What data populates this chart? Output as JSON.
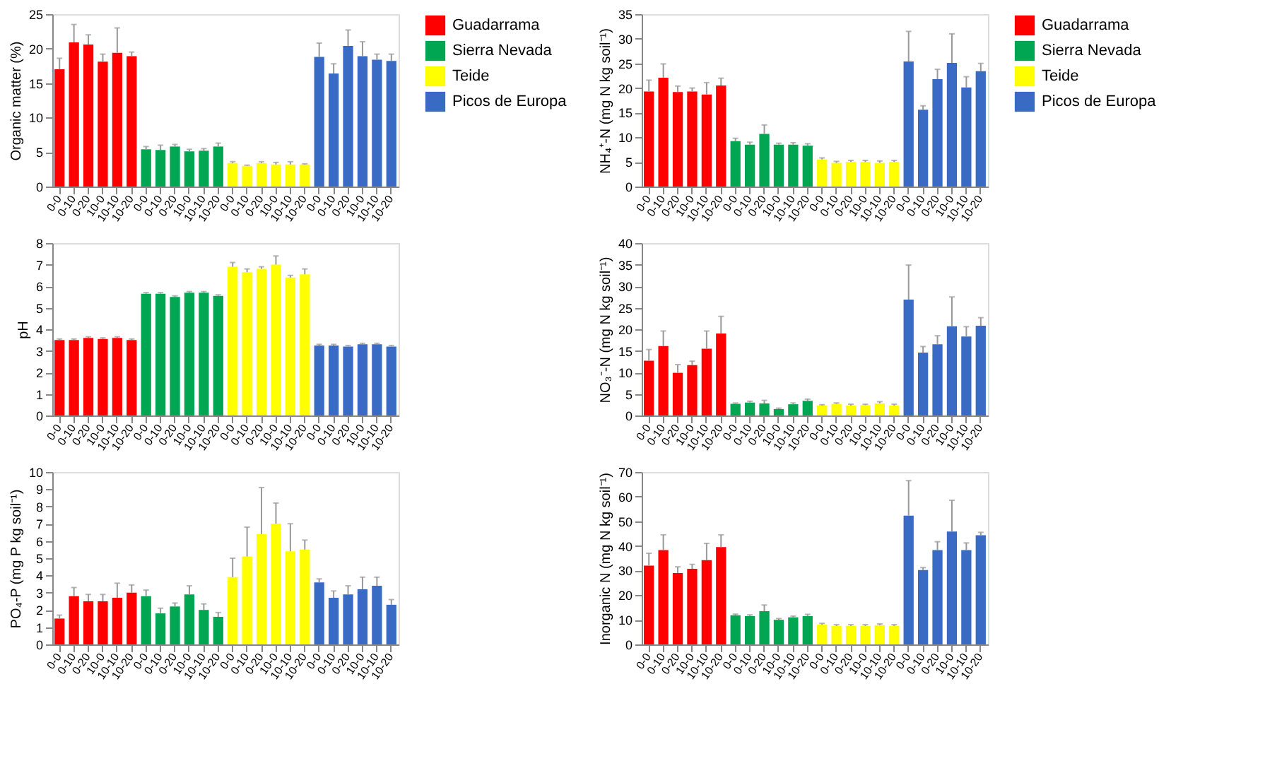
{
  "chart_data": [
    {
      "type": "bar",
      "ylabel": "Organic matter (%)",
      "legend": "right",
      "ylim": [
        0,
        25
      ],
      "yticks": [
        0,
        5,
        10,
        15,
        20,
        25
      ],
      "categories": [
        "0-0",
        "0-10",
        "0-20",
        "10-0",
        "10-10",
        "10-20",
        "0-0",
        "0-10",
        "0-20",
        "10-0",
        "10-10",
        "10-20",
        "0-0",
        "0-10",
        "0-20",
        "10-0",
        "10-10",
        "10-20",
        "0-0",
        "0-10",
        "0-20",
        "10-0",
        "10-10",
        "10-20"
      ],
      "series": [
        {
          "name": "Guadarrama",
          "color": "#ff0000",
          "values": [
            17.0,
            20.9,
            20.6,
            18.1,
            19.4,
            18.9,
            null,
            null,
            null,
            null,
            null,
            null,
            null,
            null,
            null,
            null,
            null,
            null,
            null,
            null,
            null,
            null,
            null,
            null
          ],
          "errors": [
            [
              17.0,
              18.6
            ],
            [
              20.9,
              23.5
            ],
            [
              20.6,
              22.0
            ],
            [
              18.1,
              19.2
            ],
            [
              19.4,
              23.0
            ],
            [
              18.9,
              19.5
            ],
            null,
            null,
            null,
            null,
            null,
            null,
            null,
            null,
            null,
            null,
            null,
            null,
            null,
            null,
            null,
            null,
            null,
            null
          ]
        },
        {
          "name": "Sierra Nevada",
          "color": "#00a651",
          "values": [
            null,
            null,
            null,
            null,
            null,
            null,
            5.4,
            5.3,
            5.8,
            5.1,
            5.2,
            5.8,
            null,
            null,
            null,
            null,
            null,
            null,
            null,
            null,
            null,
            null,
            null,
            null
          ],
          "errors": [
            null,
            null,
            null,
            null,
            null,
            null,
            [
              5.4,
              5.8
            ],
            [
              5.3,
              6.0
            ],
            [
              5.8,
              6.1
            ],
            [
              5.1,
              5.4
            ],
            [
              5.2,
              5.5
            ],
            [
              5.8,
              6.3
            ],
            null,
            null,
            null,
            null,
            null,
            null,
            null,
            null,
            null,
            null,
            null,
            null
          ]
        },
        {
          "name": "Teide",
          "color": "#ffff00",
          "values": [
            null,
            null,
            null,
            null,
            null,
            null,
            null,
            null,
            null,
            null,
            null,
            null,
            3.4,
            3.0,
            3.4,
            3.2,
            3.2,
            3.2,
            null,
            null,
            null,
            null,
            null,
            null
          ],
          "errors": [
            null,
            null,
            null,
            null,
            null,
            null,
            null,
            null,
            null,
            null,
            null,
            null,
            [
              3.4,
              3.6
            ],
            [
              3.0,
              3.1
            ],
            [
              3.4,
              3.6
            ],
            [
              3.2,
              3.5
            ],
            [
              3.2,
              3.6
            ],
            [
              3.2,
              3.3
            ],
            null,
            null,
            null,
            null,
            null,
            null
          ]
        },
        {
          "name": "Picos de Europa",
          "color": "#3a6bc4",
          "values": [
            null,
            null,
            null,
            null,
            null,
            null,
            null,
            null,
            null,
            null,
            null,
            null,
            null,
            null,
            null,
            null,
            null,
            null,
            18.8,
            16.4,
            20.4,
            18.9,
            18.4,
            18.2
          ],
          "errors": [
            null,
            null,
            null,
            null,
            null,
            null,
            null,
            null,
            null,
            null,
            null,
            null,
            null,
            null,
            null,
            null,
            null,
            null,
            [
              18.8,
              20.8
            ],
            [
              16.4,
              17.8
            ],
            [
              20.4,
              22.7
            ],
            [
              18.9,
              21.0
            ],
            [
              18.4,
              19.2
            ],
            [
              18.2,
              19.2
            ]
          ]
        }
      ]
    },
    {
      "type": "bar",
      "ylabel": "NH₄⁺-N (mg N kg soil⁻¹)",
      "legend": "right",
      "ylim": [
        0,
        35
      ],
      "yticks": [
        0,
        5,
        10,
        15,
        20,
        25,
        30,
        35
      ],
      "categories": [
        "0-0",
        "0-10",
        "0-20",
        "10-0",
        "10-10",
        "10-20",
        "0-0",
        "0-10",
        "0-20",
        "10-0",
        "10-10",
        "10-20",
        "0-0",
        "0-10",
        "0-20",
        "10-0",
        "10-10",
        "10-20",
        "0-0",
        "0-10",
        "0-20",
        "10-0",
        "10-10",
        "10-20"
      ],
      "series": [
        {
          "name": "Guadarrama",
          "color": "#ff0000",
          "values": [
            19.3,
            22.1,
            19.2,
            19.3,
            18.7,
            20.5,
            null,
            null,
            null,
            null,
            null,
            null,
            null,
            null,
            null,
            null,
            null,
            null,
            null,
            null,
            null,
            null,
            null,
            null
          ],
          "errors": [
            [
              19.3,
              21.6
            ],
            [
              22.1,
              24.9
            ],
            [
              19.2,
              20.4
            ],
            [
              19.3,
              20.0
            ],
            [
              18.7,
              21.1
            ],
            [
              20.5,
              22.0
            ],
            null,
            null,
            null,
            null,
            null,
            null,
            null,
            null,
            null,
            null,
            null,
            null,
            null,
            null,
            null,
            null,
            null,
            null
          ]
        },
        {
          "name": "Sierra Nevada",
          "color": "#00a651",
          "values": [
            null,
            null,
            null,
            null,
            null,
            null,
            9.2,
            8.5,
            10.7,
            8.5,
            8.5,
            8.3,
            null,
            null,
            null,
            null,
            null,
            null,
            null,
            null,
            null,
            null,
            null,
            null
          ],
          "errors": [
            null,
            null,
            null,
            null,
            null,
            null,
            [
              9.2,
              9.8
            ],
            [
              8.5,
              9.0
            ],
            [
              10.7,
              12.5
            ],
            [
              8.5,
              8.8
            ],
            [
              8.5,
              8.9
            ],
            [
              8.3,
              8.7
            ],
            null,
            null,
            null,
            null,
            null,
            null,
            null,
            null,
            null,
            null,
            null,
            null
          ]
        },
        {
          "name": "Teide",
          "color": "#ffff00",
          "values": [
            null,
            null,
            null,
            null,
            null,
            null,
            null,
            null,
            null,
            null,
            null,
            null,
            5.5,
            4.8,
            5.0,
            5.0,
            4.8,
            5.0,
            null,
            null,
            null,
            null,
            null,
            null
          ],
          "errors": [
            null,
            null,
            null,
            null,
            null,
            null,
            null,
            null,
            null,
            null,
            null,
            null,
            [
              5.5,
              5.8
            ],
            [
              4.8,
              5.1
            ],
            [
              5.0,
              5.3
            ],
            [
              5.0,
              5.3
            ],
            [
              4.8,
              5.2
            ],
            [
              5.0,
              5.3
            ],
            null,
            null,
            null,
            null,
            null,
            null
          ]
        },
        {
          "name": "Picos de Europa",
          "color": "#3a6bc4",
          "values": [
            null,
            null,
            null,
            null,
            null,
            null,
            null,
            null,
            null,
            null,
            null,
            null,
            null,
            null,
            null,
            null,
            null,
            null,
            25.4,
            15.6,
            21.8,
            25.1,
            20.1,
            23.4
          ],
          "errors": [
            null,
            null,
            null,
            null,
            null,
            null,
            null,
            null,
            null,
            null,
            null,
            null,
            null,
            null,
            null,
            null,
            null,
            null,
            [
              25.4,
              31.5
            ],
            [
              15.6,
              16.4
            ],
            [
              21.8,
              23.8
            ],
            [
              25.1,
              31.0
            ],
            [
              20.1,
              22.3
            ],
            [
              23.4,
              25.0
            ]
          ]
        }
      ]
    },
    {
      "type": "bar",
      "ylabel": "pH",
      "ylim": [
        0,
        8
      ],
      "yticks": [
        0,
        1,
        2,
        3,
        4,
        5,
        6,
        7,
        8
      ],
      "categories": [
        "0-0",
        "0-10",
        "0-20",
        "10-0",
        "10-10",
        "10-20",
        "0-0",
        "0-10",
        "0-20",
        "10-0",
        "10-10",
        "10-20",
        "0-0",
        "0-10",
        "0-20",
        "10-0",
        "10-10",
        "10-20",
        "0-0",
        "0-10",
        "0-20",
        "10-0",
        "10-10",
        "10-20"
      ],
      "series": [
        {
          "color": "#ff0000",
          "values": [
            3.5,
            3.5,
            3.6,
            3.55,
            3.6,
            3.5,
            null,
            null,
            null,
            null,
            null,
            null,
            null,
            null,
            null,
            null,
            null,
            null,
            null,
            null,
            null,
            null,
            null,
            null
          ],
          "errors": [
            [
              3.5,
              3.55
            ],
            [
              3.5,
              3.55
            ],
            [
              3.6,
              3.65
            ],
            [
              3.55,
              3.6
            ],
            [
              3.6,
              3.65
            ],
            [
              3.5,
              3.55
            ],
            null,
            null,
            null,
            null,
            null,
            null,
            null,
            null,
            null,
            null,
            null,
            null,
            null,
            null,
            null,
            null,
            null,
            null
          ]
        },
        {
          "color": "#00a651",
          "values": [
            null,
            null,
            null,
            null,
            null,
            null,
            5.65,
            5.65,
            5.5,
            5.7,
            5.7,
            5.55,
            null,
            null,
            null,
            null,
            null,
            null,
            null,
            null,
            null,
            null,
            null,
            null
          ],
          "errors": [
            null,
            null,
            null,
            null,
            null,
            null,
            [
              5.65,
              5.7
            ],
            [
              5.65,
              5.7
            ],
            [
              5.5,
              5.55
            ],
            [
              5.7,
              5.75
            ],
            [
              5.7,
              5.75
            ],
            [
              5.55,
              5.6
            ],
            null,
            null,
            null,
            null,
            null,
            null,
            null,
            null,
            null,
            null,
            null,
            null
          ]
        },
        {
          "color": "#ffff00",
          "values": [
            null,
            null,
            null,
            null,
            null,
            null,
            null,
            null,
            null,
            null,
            null,
            null,
            6.9,
            6.65,
            6.8,
            7.0,
            6.4,
            6.55,
            null,
            null,
            null,
            null,
            null,
            null
          ],
          "errors": [
            null,
            null,
            null,
            null,
            null,
            null,
            null,
            null,
            null,
            null,
            null,
            null,
            [
              6.9,
              7.1
            ],
            [
              6.65,
              6.8
            ],
            [
              6.8,
              6.9
            ],
            [
              7.0,
              7.4
            ],
            [
              6.4,
              6.5
            ],
            [
              6.55,
              6.8
            ],
            null,
            null,
            null,
            null,
            null,
            null
          ]
        },
        {
          "color": "#3a6bc4",
          "values": [
            null,
            null,
            null,
            null,
            null,
            null,
            null,
            null,
            null,
            null,
            null,
            null,
            null,
            null,
            null,
            null,
            null,
            null,
            3.25,
            3.25,
            3.2,
            3.3,
            3.3,
            3.2
          ],
          "errors": [
            null,
            null,
            null,
            null,
            null,
            null,
            null,
            null,
            null,
            null,
            null,
            null,
            null,
            null,
            null,
            null,
            null,
            null,
            [
              3.25,
              3.3
            ],
            [
              3.25,
              3.3
            ],
            [
              3.2,
              3.25
            ],
            [
              3.3,
              3.35
            ],
            [
              3.3,
              3.35
            ],
            [
              3.2,
              3.25
            ]
          ]
        }
      ]
    },
    {
      "type": "bar",
      "ylabel": "NO₃⁻-N (mg N kg soil⁻¹)",
      "ylim": [
        0,
        40
      ],
      "yticks": [
        0,
        5,
        10,
        15,
        20,
        25,
        30,
        35,
        40
      ],
      "categories": [
        "0-0",
        "0-10",
        "0-20",
        "10-0",
        "10-10",
        "10-20",
        "0-0",
        "0-10",
        "0-20",
        "10-0",
        "10-10",
        "10-20",
        "0-0",
        "0-10",
        "0-20",
        "10-0",
        "10-10",
        "10-20",
        "0-0",
        "0-10",
        "0-20",
        "10-0",
        "10-10",
        "10-20"
      ],
      "series": [
        {
          "color": "#ff0000",
          "values": [
            12.7,
            16.1,
            9.9,
            11.7,
            15.5,
            19.0,
            null,
            null,
            null,
            null,
            null,
            null,
            null,
            null,
            null,
            null,
            null,
            null,
            null,
            null,
            null,
            null,
            null,
            null
          ],
          "errors": [
            [
              12.7,
              15.3
            ],
            [
              16.1,
              19.6
            ],
            [
              9.9,
              11.8
            ],
            [
              11.7,
              12.6
            ],
            [
              15.5,
              19.6
            ],
            [
              19.0,
              23.0
            ],
            null,
            null,
            null,
            null,
            null,
            null,
            null,
            null,
            null,
            null,
            null,
            null,
            null,
            null,
            null,
            null,
            null,
            null
          ]
        },
        {
          "color": "#00a651",
          "values": [
            null,
            null,
            null,
            null,
            null,
            null,
            2.7,
            3.0,
            2.8,
            1.5,
            2.6,
            3.4,
            null,
            null,
            null,
            null,
            null,
            null,
            null,
            null,
            null,
            null,
            null,
            null
          ],
          "errors": [
            null,
            null,
            null,
            null,
            null,
            null,
            [
              2.7,
              2.9
            ],
            [
              3.0,
              3.3
            ],
            [
              2.8,
              3.5
            ],
            [
              1.5,
              1.7
            ],
            [
              2.6,
              2.9
            ],
            [
              3.4,
              3.8
            ],
            null,
            null,
            null,
            null,
            null,
            null,
            null,
            null,
            null,
            null,
            null,
            null
          ]
        },
        {
          "color": "#ffff00",
          "values": [
            null,
            null,
            null,
            null,
            null,
            null,
            null,
            null,
            null,
            null,
            null,
            null,
            2.3,
            2.7,
            2.3,
            2.4,
            2.8,
            2.3,
            null,
            null,
            null,
            null,
            null,
            null
          ],
          "errors": [
            null,
            null,
            null,
            null,
            null,
            null,
            null,
            null,
            null,
            null,
            null,
            null,
            [
              2.3,
              2.5
            ],
            [
              2.7,
              2.9
            ],
            [
              2.3,
              2.6
            ],
            [
              2.4,
              2.6
            ],
            [
              2.8,
              3.2
            ],
            [
              2.3,
              2.6
            ],
            null,
            null,
            null,
            null,
            null,
            null
          ]
        },
        {
          "color": "#3a6bc4",
          "values": [
            null,
            null,
            null,
            null,
            null,
            null,
            null,
            null,
            null,
            null,
            null,
            null,
            null,
            null,
            null,
            null,
            null,
            null,
            26.9,
            14.6,
            16.5,
            20.7,
            18.3,
            20.8
          ],
          "errors": [
            null,
            null,
            null,
            null,
            null,
            null,
            null,
            null,
            null,
            null,
            null,
            null,
            null,
            null,
            null,
            null,
            null,
            null,
            [
              26.9,
              34.9
            ],
            [
              14.6,
              16.0
            ],
            [
              16.5,
              18.5
            ],
            [
              20.7,
              27.5
            ],
            [
              18.3,
              20.6
            ],
            [
              20.8,
              22.7
            ]
          ]
        }
      ]
    },
    {
      "type": "bar",
      "ylabel": "PO₄-P (mg P kg soil⁻¹)",
      "ylim": [
        0,
        10
      ],
      "yticks": [
        0,
        1,
        2,
        3,
        4,
        5,
        6,
        7,
        8,
        9,
        10
      ],
      "categories": [
        "0-0",
        "0-10",
        "0-20",
        "10-0",
        "10-10",
        "10-20",
        "0-0",
        "0-10",
        "0-20",
        "10-0",
        "10-10",
        "10-20",
        "0-0",
        "0-10",
        "0-20",
        "10-0",
        "10-10",
        "10-20",
        "0-0",
        "0-10",
        "0-20",
        "10-0",
        "10-10",
        "10-20"
      ],
      "series": [
        {
          "color": "#ff0000",
          "values": [
            1.5,
            2.8,
            2.5,
            2.5,
            2.7,
            3.0,
            null,
            null,
            null,
            null,
            null,
            null,
            null,
            null,
            null,
            null,
            null,
            null,
            null,
            null,
            null,
            null,
            null,
            null
          ],
          "errors": [
            [
              1.5,
              1.7
            ],
            [
              2.8,
              3.3
            ],
            [
              2.5,
              2.9
            ],
            [
              2.5,
              2.9
            ],
            [
              2.7,
              3.55
            ],
            [
              3.0,
              3.45
            ],
            null,
            null,
            null,
            null,
            null,
            null,
            null,
            null,
            null,
            null,
            null,
            null,
            null,
            null,
            null,
            null,
            null,
            null
          ]
        },
        {
          "color": "#00a651",
          "values": [
            null,
            null,
            null,
            null,
            null,
            null,
            2.8,
            1.8,
            2.2,
            2.9,
            2.0,
            1.6,
            null,
            null,
            null,
            null,
            null,
            null,
            null,
            null,
            null,
            null,
            null,
            null
          ],
          "errors": [
            null,
            null,
            null,
            null,
            null,
            null,
            [
              2.8,
              3.15
            ],
            [
              1.8,
              2.1
            ],
            [
              2.2,
              2.4
            ],
            [
              2.9,
              3.4
            ],
            [
              2.0,
              2.35
            ],
            [
              1.6,
              1.85
            ],
            null,
            null,
            null,
            null,
            null,
            null,
            null,
            null,
            null,
            null,
            null,
            null
          ]
        },
        {
          "color": "#ffff00",
          "values": [
            null,
            null,
            null,
            null,
            null,
            null,
            null,
            null,
            null,
            null,
            null,
            null,
            3.9,
            5.1,
            6.4,
            7.0,
            5.4,
            5.5,
            null,
            null,
            null,
            null,
            null,
            null
          ],
          "errors": [
            null,
            null,
            null,
            null,
            null,
            null,
            null,
            null,
            null,
            null,
            null,
            null,
            [
              3.9,
              5.0
            ],
            [
              5.1,
              6.8
            ],
            [
              6.4,
              9.1
            ],
            [
              7.0,
              8.2
            ],
            [
              5.4,
              7.0
            ],
            [
              5.5,
              6.05
            ],
            null,
            null,
            null,
            null,
            null,
            null
          ]
        },
        {
          "color": "#3a6bc4",
          "values": [
            null,
            null,
            null,
            null,
            null,
            null,
            null,
            null,
            null,
            null,
            null,
            null,
            null,
            null,
            null,
            null,
            null,
            null,
            3.6,
            2.7,
            2.9,
            3.2,
            3.4,
            2.3
          ],
          "errors": [
            null,
            null,
            null,
            null,
            null,
            null,
            null,
            null,
            null,
            null,
            null,
            null,
            null,
            null,
            null,
            null,
            null,
            null,
            [
              3.6,
              3.8
            ],
            [
              2.7,
              3.1
            ],
            [
              2.9,
              3.4
            ],
            [
              3.2,
              3.9
            ],
            [
              3.4,
              3.9
            ],
            [
              2.3,
              2.6
            ]
          ]
        }
      ]
    },
    {
      "type": "bar",
      "ylabel": "Inorganic N (mg N kg soil⁻¹)",
      "ylim": [
        0,
        70
      ],
      "yticks": [
        0,
        10,
        20,
        30,
        40,
        50,
        60,
        70
      ],
      "categories": [
        "0-0",
        "0-10",
        "0-20",
        "10-0",
        "10-10",
        "10-20",
        "0-0",
        "0-10",
        "0-20",
        "10-0",
        "10-10",
        "10-20",
        "0-0",
        "0-10",
        "0-20",
        "10-0",
        "10-10",
        "10-20",
        "0-0",
        "0-10",
        "0-20",
        "10-0",
        "10-10",
        "10-20"
      ],
      "series": [
        {
          "color": "#ff0000",
          "values": [
            32,
            38.3,
            29,
            30.7,
            34.2,
            39.5,
            null,
            null,
            null,
            null,
            null,
            null,
            null,
            null,
            null,
            null,
            null,
            null,
            null,
            null,
            null,
            null,
            null,
            null
          ],
          "errors": [
            [
              32,
              37
            ],
            [
              38.3,
              44.5
            ],
            [
              29,
              31.5
            ],
            [
              30.7,
              32.5
            ],
            [
              34.2,
              41
            ],
            [
              39.5,
              44.5
            ],
            null,
            null,
            null,
            null,
            null,
            null,
            null,
            null,
            null,
            null,
            null,
            null,
            null,
            null,
            null,
            null,
            null,
            null
          ]
        },
        {
          "color": "#00a651",
          "values": [
            null,
            null,
            null,
            null,
            null,
            null,
            11.8,
            11.5,
            13.5,
            10,
            11,
            11.5,
            null,
            null,
            null,
            null,
            null,
            null,
            null,
            null,
            null,
            null,
            null,
            null
          ],
          "errors": [
            null,
            null,
            null,
            null,
            null,
            null,
            [
              11.8,
              12.3
            ],
            [
              11.5,
              12
            ],
            [
              13.5,
              16
            ],
            [
              10,
              10.5
            ],
            [
              11,
              11.5
            ],
            [
              11.5,
              12.2
            ],
            null,
            null,
            null,
            null,
            null,
            null,
            null,
            null,
            null,
            null,
            null,
            null
          ]
        },
        {
          "color": "#ffff00",
          "values": [
            null,
            null,
            null,
            null,
            null,
            null,
            null,
            null,
            null,
            null,
            null,
            null,
            8,
            7.5,
            7.5,
            7.5,
            7.8,
            7.5,
            null,
            null,
            null,
            null,
            null,
            null
          ],
          "errors": [
            null,
            null,
            null,
            null,
            null,
            null,
            null,
            null,
            null,
            null,
            null,
            null,
            [
              8,
              8.5
            ],
            [
              7.5,
              8
            ],
            [
              7.5,
              8
            ],
            [
              7.5,
              8
            ],
            [
              7.8,
              8.3
            ],
            [
              7.5,
              8
            ],
            null,
            null,
            null,
            null,
            null,
            null
          ]
        },
        {
          "color": "#3a6bc4",
          "values": [
            null,
            null,
            null,
            null,
            null,
            null,
            null,
            null,
            null,
            null,
            null,
            null,
            null,
            null,
            null,
            null,
            null,
            null,
            52.3,
            30.2,
            38.3,
            45.8,
            38.3,
            44.3
          ],
          "errors": [
            null,
            null,
            null,
            null,
            null,
            null,
            null,
            null,
            null,
            null,
            null,
            null,
            null,
            null,
            null,
            null,
            null,
            null,
            [
              52.3,
              66.5
            ],
            [
              30.2,
              31.2
            ],
            [
              38.3,
              41.7
            ],
            [
              45.8,
              58.5
            ],
            [
              38.3,
              41.2
            ],
            [
              44.3,
              45.5
            ]
          ]
        }
      ]
    }
  ]
}
